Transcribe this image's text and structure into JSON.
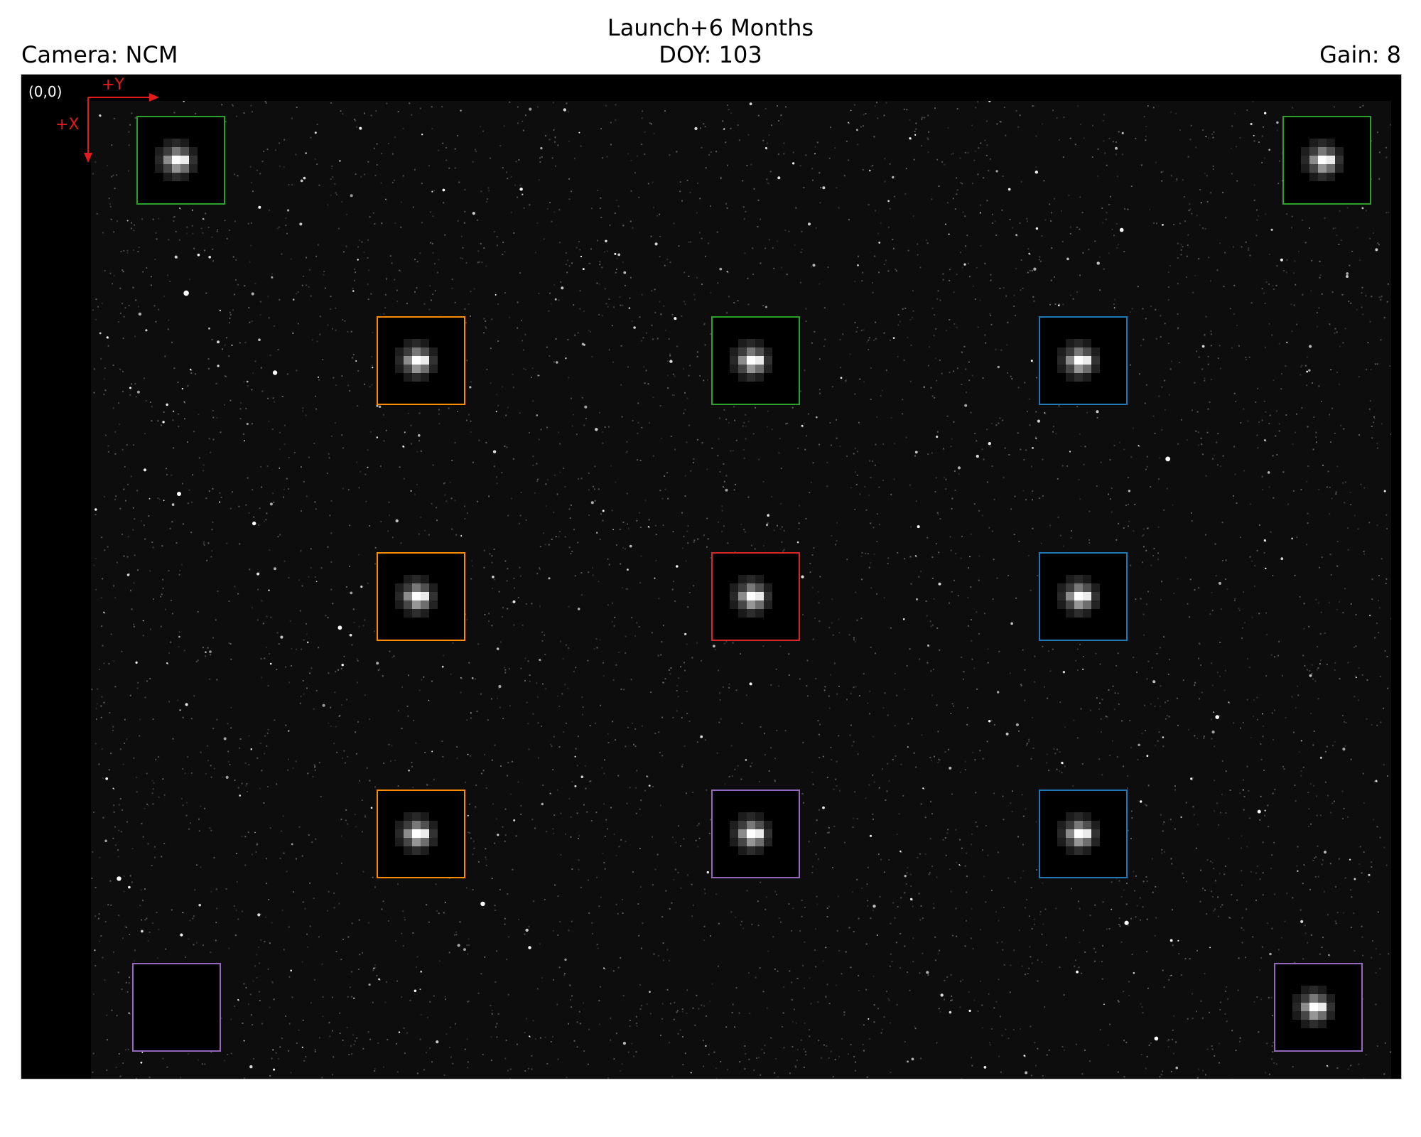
{
  "header": {
    "title_line1": "Launch+6 Months",
    "title_line2": "DOY: 103",
    "camera": "Camera: NCM",
    "gain": "Gain: 8"
  },
  "overlay": {
    "origin": "(0,0)",
    "axis_y": "+Y",
    "axis_x": "+X",
    "axis_color": "#e41a1c"
  },
  "colors": {
    "green": "#2ca02c",
    "orange": "#ff8c00",
    "blue": "#1f77b4",
    "red": "#d62728",
    "purple": "#9467bd"
  },
  "boxes": [
    {
      "id": "top-left",
      "color": "green",
      "star": true
    },
    {
      "id": "top-right",
      "color": "green",
      "star": true
    },
    {
      "id": "row1-left",
      "color": "orange",
      "star": true
    },
    {
      "id": "row1-center",
      "color": "green",
      "star": true
    },
    {
      "id": "row1-right",
      "color": "blue",
      "star": true
    },
    {
      "id": "row2-left",
      "color": "orange",
      "star": true
    },
    {
      "id": "row2-center",
      "color": "red",
      "star": true
    },
    {
      "id": "row2-right",
      "color": "blue",
      "star": true
    },
    {
      "id": "row3-left",
      "color": "orange",
      "star": true
    },
    {
      "id": "row3-center",
      "color": "purple",
      "star": true
    },
    {
      "id": "row3-right",
      "color": "blue",
      "star": true
    },
    {
      "id": "bottom-left",
      "color": "purple",
      "star": false
    },
    {
      "id": "bottom-right",
      "color": "purple",
      "star": true
    }
  ]
}
